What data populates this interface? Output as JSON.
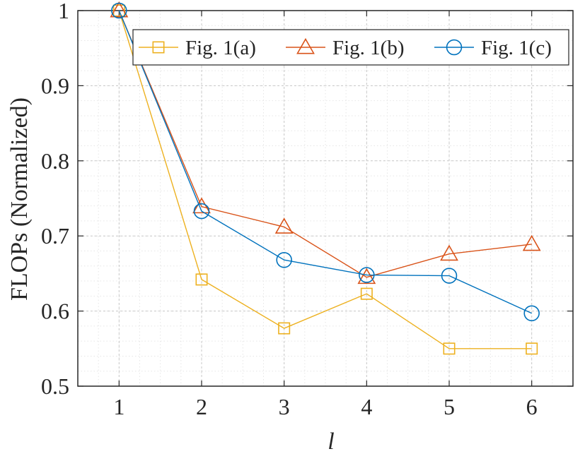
{
  "chart_data": {
    "type": "line",
    "title": "",
    "xlabel": "l",
    "ylabel": "FLOPs (Normalized)",
    "x": [
      1,
      2,
      3,
      4,
      5,
      6
    ],
    "xlim": [
      0.5,
      6.5
    ],
    "ylim": [
      0.5,
      1.0
    ],
    "xticks": [
      "1",
      "2",
      "3",
      "4",
      "5",
      "6"
    ],
    "yticks": [
      "0.5",
      "0.6",
      "0.7",
      "0.8",
      "0.9",
      "1"
    ],
    "grid": true,
    "minor_grid": true,
    "legend_position": "top-right",
    "series": [
      {
        "name": "Fig. 1(a)",
        "color": "#EDB120",
        "marker": "square",
        "values": [
          1.0,
          0.642,
          0.577,
          0.623,
          0.55,
          0.55
        ]
      },
      {
        "name": "Fig. 1(b)",
        "color": "#D95319",
        "marker": "triangle",
        "values": [
          1.0,
          0.739,
          0.712,
          0.645,
          0.676,
          0.689
        ]
      },
      {
        "name": "Fig. 1(c)",
        "color": "#0072BD",
        "marker": "circle",
        "values": [
          1.0,
          0.733,
          0.668,
          0.648,
          0.647,
          0.597
        ]
      }
    ]
  }
}
